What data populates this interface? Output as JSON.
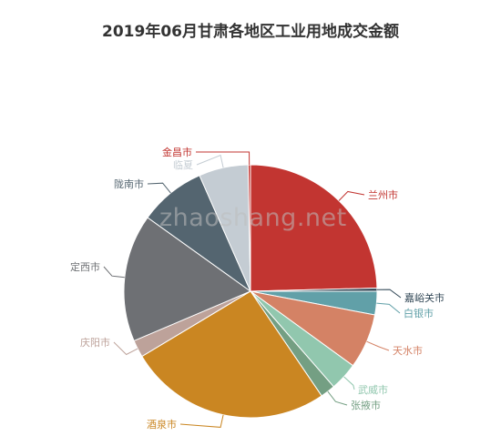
{
  "chart_data": {
    "type": "pie",
    "title": "2019年06月甘肃各地区工业用地成交金额",
    "slices": [
      {
        "label": "兰州市",
        "value": 24.6,
        "color": "#c23531"
      },
      {
        "label": "嘉峪关市",
        "value": 0.4,
        "color": "#2f4554"
      },
      {
        "label": "白银市",
        "value": 3.0,
        "color": "#61a0a8"
      },
      {
        "label": "天水市",
        "value": 7.0,
        "color": "#d48265"
      },
      {
        "label": "武威市",
        "value": 3.6,
        "color": "#91c7ae"
      },
      {
        "label": "张掖市",
        "value": 1.9,
        "color": "#749f83"
      },
      {
        "label": "酒泉市",
        "value": 25.9,
        "color": "#ca8622"
      },
      {
        "label": "庆阳市",
        "value": 2.2,
        "color": "#bda29a"
      },
      {
        "label": "定西市",
        "value": 16.3,
        "color": "#6e7074"
      },
      {
        "label": "陇南市",
        "value": 8.5,
        "color": "#546570"
      },
      {
        "label": "临夏",
        "value": 6.3,
        "color": "#c4ccd3"
      },
      {
        "label": "金昌市",
        "value": 0.3,
        "color": "#c23531"
      }
    ]
  },
  "watermark": "zhaoshang.net"
}
